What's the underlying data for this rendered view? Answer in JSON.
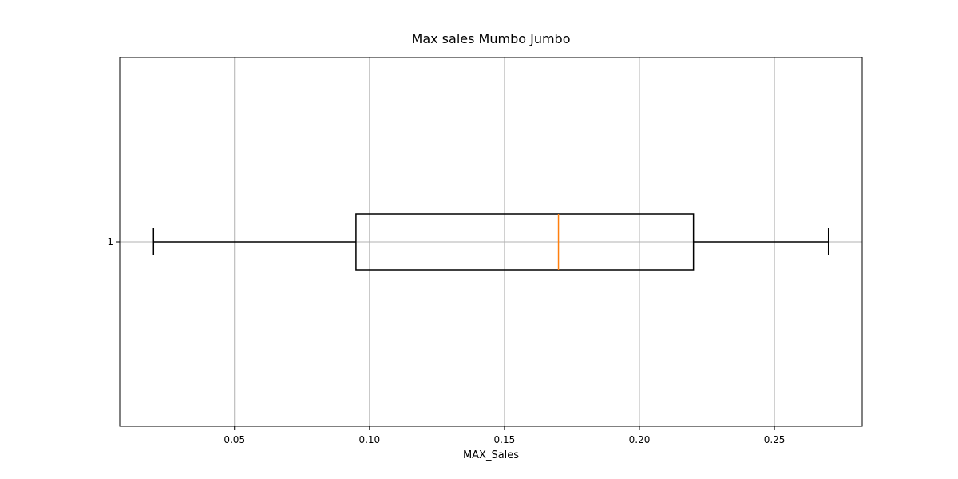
{
  "chart_data": {
    "type": "boxplot",
    "orientation": "horizontal",
    "title": "Max sales Mumbo Jumbo",
    "xlabel": "MAX_Sales",
    "ylabel": "",
    "xlim": [
      0.0075,
      0.2825
    ],
    "xticks": [
      0.05,
      0.1,
      0.15,
      0.2,
      0.25
    ],
    "xtick_labels": [
      "0.05",
      "0.10",
      "0.15",
      "0.20",
      "0.25"
    ],
    "ytick_labels": [
      "1"
    ],
    "grid": true,
    "boxes": [
      {
        "label": "1",
        "whisker_low": 0.02,
        "q1": 0.095,
        "median": 0.17,
        "q3": 0.22,
        "whisker_high": 0.27
      }
    ],
    "colors": {
      "box": "#000000",
      "median": "#ff7f0e",
      "grid": "#b0b0b0",
      "axes": "#000000"
    }
  }
}
